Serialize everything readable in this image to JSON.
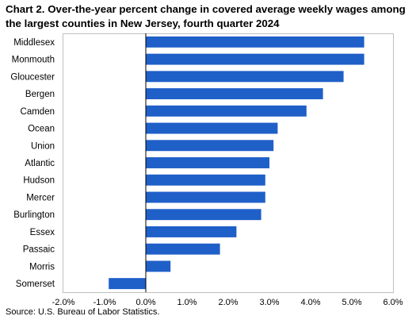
{
  "chart_data": {
    "type": "bar",
    "orientation": "horizontal",
    "title": "Chart 2. Over-the-year percent change in covered average weekly wages among the largest counties in New Jersey, fourth quarter 2024",
    "categories": [
      "Middlesex",
      "Monmouth",
      "Gloucester",
      "Bergen",
      "Camden",
      "Ocean",
      "Union",
      "Atlantic",
      "Hudson",
      "Mercer",
      "Burlington",
      "Essex",
      "Passaic",
      "Morris",
      "Somerset"
    ],
    "values": [
      5.3,
      5.3,
      4.8,
      4.3,
      3.9,
      3.2,
      3.1,
      3.0,
      2.9,
      2.9,
      2.8,
      2.2,
      1.8,
      0.6,
      -0.9
    ],
    "xlim": [
      -2.0,
      6.0
    ],
    "ticks": [
      "-2.0%",
      "-1.0%",
      "0.0%",
      "1.0%",
      "2.0%",
      "3.0%",
      "4.0%",
      "5.0%",
      "6.0%"
    ],
    "xlabel": "",
    "ylabel": "",
    "grid": false,
    "bar_color": "#1f5fc8"
  },
  "source": "Source: U.S. Bureau of Labor Statistics."
}
